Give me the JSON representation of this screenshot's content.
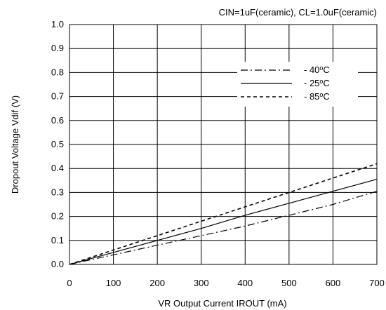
{
  "chart_data": {
    "type": "line",
    "title": "CIN=1uF(ceramic), CL=1.0uF(ceramic)",
    "xlabel": "VR Output Current IROUT (mA)",
    "ylabel": "Dropout Voltage Vdif (V)",
    "xlim": [
      0,
      700
    ],
    "ylim": [
      0,
      1.0
    ],
    "x_ticks": [
      "0",
      "100",
      "200",
      "300",
      "400",
      "500",
      "600",
      "700"
    ],
    "y_ticks": [
      "0.0",
      "0.1",
      "0.2",
      "0.3",
      "0.4",
      "0.5",
      "0.6",
      "0.7",
      "0.8",
      "0.9",
      "1.0"
    ],
    "grid": true,
    "legend_position": "top-right",
    "series": [
      {
        "name": "- 40°C",
        "label_prefix": "- 40",
        "label_suffix": "C",
        "style": "dash-dot",
        "points": [
          [
            0,
            0
          ],
          [
            100,
            0.04
          ],
          [
            200,
            0.08
          ],
          [
            300,
            0.12
          ],
          [
            400,
            0.16
          ],
          [
            500,
            0.205
          ],
          [
            600,
            0.25
          ],
          [
            700,
            0.305
          ]
        ]
      },
      {
        "name": "- 25°C",
        "label_prefix": "- 25",
        "label_suffix": "C",
        "style": "solid",
        "points": [
          [
            0,
            0
          ],
          [
            100,
            0.05
          ],
          [
            200,
            0.1
          ],
          [
            300,
            0.15
          ],
          [
            400,
            0.205
          ],
          [
            500,
            0.255
          ],
          [
            600,
            0.305
          ],
          [
            700,
            0.355
          ]
        ]
      },
      {
        "name": "- 85°C",
        "label_prefix": "- 85",
        "label_suffix": "C",
        "style": "dashed",
        "points": [
          [
            0,
            0
          ],
          [
            100,
            0.06
          ],
          [
            200,
            0.12
          ],
          [
            300,
            0.18
          ],
          [
            400,
            0.24
          ],
          [
            500,
            0.3
          ],
          [
            600,
            0.36
          ],
          [
            700,
            0.42
          ]
        ]
      }
    ]
  }
}
